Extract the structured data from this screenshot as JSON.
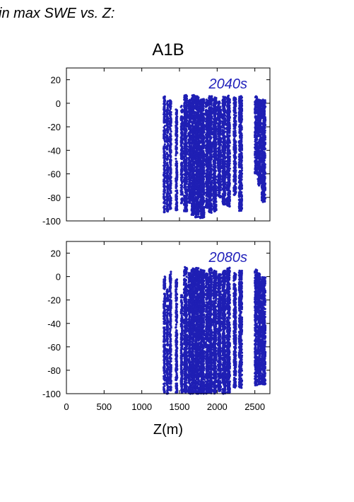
{
  "header": {
    "title": "in max SWE vs. Z:",
    "scenario": "A1B"
  },
  "colors": {
    "points": "#1f1fb4",
    "period_label": "#2222bb",
    "axis": "#000000"
  },
  "chart_data": [
    {
      "type": "scatter",
      "annotation": "2040s",
      "xlabel": "",
      "ylabel": "",
      "xlim": [
        0,
        2700
      ],
      "ylim": [
        -100,
        30
      ],
      "yticks": [
        20,
        0,
        -20,
        -40,
        -60,
        -80,
        -100
      ],
      "xticks": [
        0,
        500,
        1000,
        1500,
        2000,
        2500
      ],
      "show_x_tick_labels": false,
      "grid": false,
      "clusters": [
        {
          "x": [
            1290,
            1310
          ],
          "ymin": -93,
          "ymax": 6
        },
        {
          "x": [
            1330,
            1350
          ],
          "ymin": -92,
          "ymax": 2
        },
        {
          "x": [
            1370,
            1390
          ],
          "ymin": -90,
          "ymax": 5
        },
        {
          "x": [
            1450,
            1470
          ],
          "ymin": -91,
          "ymax": -5
        },
        {
          "x": [
            1520,
            1540
          ],
          "ymin": -85,
          "ymax": -2
        },
        {
          "x": [
            1560,
            1600
          ],
          "ymin": -92,
          "ymax": 7
        },
        {
          "x": [
            1620,
            1650
          ],
          "ymin": -85,
          "ymax": 3
        },
        {
          "x": [
            1660,
            1700
          ],
          "ymin": -95,
          "ymax": 7
        },
        {
          "x": [
            1710,
            1760
          ],
          "ymin": -97,
          "ymax": 6
        },
        {
          "x": [
            1770,
            1830
          ],
          "ymin": -98,
          "ymax": 4
        },
        {
          "x": [
            1850,
            1880
          ],
          "ymin": -90,
          "ymax": 3
        },
        {
          "x": [
            1890,
            1930
          ],
          "ymin": -93,
          "ymax": 6
        },
        {
          "x": [
            1950,
            1990
          ],
          "ymin": -92,
          "ymax": 5
        },
        {
          "x": [
            2010,
            2050
          ],
          "ymin": -80,
          "ymax": 2
        },
        {
          "x": [
            2070,
            2110
          ],
          "ymin": -86,
          "ymax": 6
        },
        {
          "x": [
            2130,
            2170
          ],
          "ymin": -88,
          "ymax": 7
        },
        {
          "x": [
            2220,
            2250
          ],
          "ymin": -78,
          "ymax": 5
        },
        {
          "x": [
            2290,
            2330
          ],
          "ymin": -92,
          "ymax": 6
        },
        {
          "x": [
            2500,
            2530
          ],
          "ymin": -60,
          "ymax": 6
        },
        {
          "x": [
            2540,
            2580
          ],
          "ymin": -70,
          "ymax": 3
        },
        {
          "x": [
            2590,
            2640
          ],
          "ymin": -84,
          "ymax": 3
        }
      ]
    },
    {
      "type": "scatter",
      "annotation": "2080s",
      "xlabel": "Z(m)",
      "ylabel": "",
      "xlim": [
        0,
        2700
      ],
      "ylim": [
        -100,
        30
      ],
      "yticks": [
        20,
        0,
        -20,
        -40,
        -60,
        -80,
        -100
      ],
      "xticks": [
        0,
        500,
        1000,
        1500,
        2000,
        2500
      ],
      "show_x_tick_labels": true,
      "grid": false,
      "clusters": [
        {
          "x": [
            1290,
            1310
          ],
          "ymin": -100,
          "ymax": 0
        },
        {
          "x": [
            1330,
            1350
          ],
          "ymin": -100,
          "ymax": -10
        },
        {
          "x": [
            1370,
            1390
          ],
          "ymin": -98,
          "ymax": 5
        },
        {
          "x": [
            1450,
            1470
          ],
          "ymin": -100,
          "ymax": -2
        },
        {
          "x": [
            1520,
            1540
          ],
          "ymin": -100,
          "ymax": -15
        },
        {
          "x": [
            1560,
            1600
          ],
          "ymin": -100,
          "ymax": 8
        },
        {
          "x": [
            1620,
            1650
          ],
          "ymin": -100,
          "ymax": 3
        },
        {
          "x": [
            1660,
            1700
          ],
          "ymin": -100,
          "ymax": 7
        },
        {
          "x": [
            1710,
            1760
          ],
          "ymin": -100,
          "ymax": 8
        },
        {
          "x": [
            1770,
            1830
          ],
          "ymin": -100,
          "ymax": 6
        },
        {
          "x": [
            1850,
            1880
          ],
          "ymin": -100,
          "ymax": 3
        },
        {
          "x": [
            1890,
            1930
          ],
          "ymin": -100,
          "ymax": 7
        },
        {
          "x": [
            1950,
            1990
          ],
          "ymin": -100,
          "ymax": 5
        },
        {
          "x": [
            2010,
            2050
          ],
          "ymin": -98,
          "ymax": 2
        },
        {
          "x": [
            2070,
            2110
          ],
          "ymin": -100,
          "ymax": 6
        },
        {
          "x": [
            2130,
            2170
          ],
          "ymin": -100,
          "ymax": 8
        },
        {
          "x": [
            2220,
            2250
          ],
          "ymin": -96,
          "ymax": 3
        },
        {
          "x": [
            2290,
            2330
          ],
          "ymin": -95,
          "ymax": 5
        },
        {
          "x": [
            2500,
            2530
          ],
          "ymin": -94,
          "ymax": 6
        },
        {
          "x": [
            2540,
            2580
          ],
          "ymin": -92,
          "ymax": 4
        },
        {
          "x": [
            2590,
            2640
          ],
          "ymin": -92,
          "ymax": 0
        }
      ]
    }
  ]
}
